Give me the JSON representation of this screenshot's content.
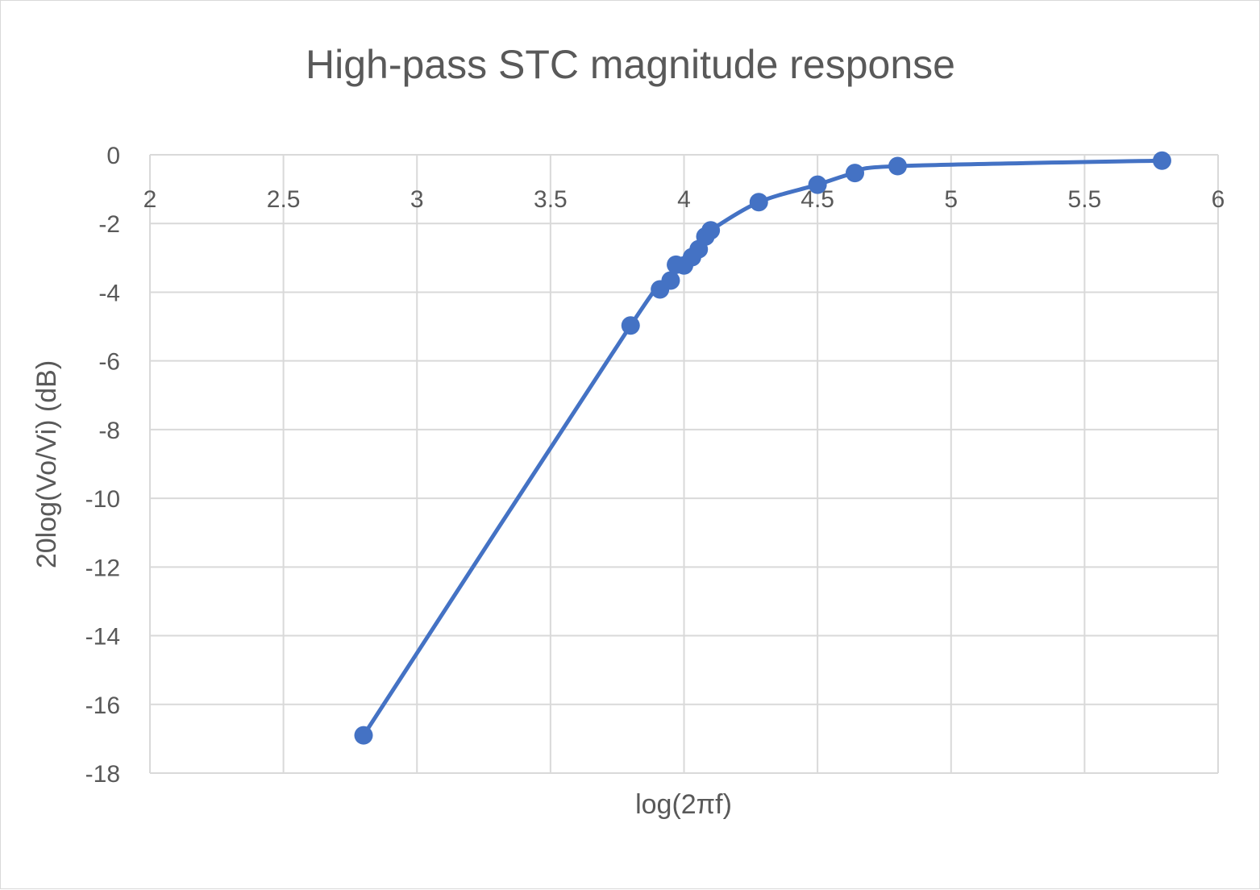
{
  "chart_data": {
    "type": "scatter",
    "title": "High-pass STC magnitude response",
    "xlabel": "log(2πf)",
    "ylabel": "20log(Vo/Vi) (dB)",
    "xlim": [
      2,
      6
    ],
    "ylim": [
      -18,
      0
    ],
    "x_ticks": [
      "2",
      "2.5",
      "3",
      "3.5",
      "4",
      "4.5",
      "5",
      "5.5",
      "6"
    ],
    "y_ticks": [
      "0",
      "-2",
      "-4",
      "-6",
      "-8",
      "-10",
      "-12",
      "-14",
      "-16",
      "-18"
    ],
    "grid": true,
    "line_style": "smooth",
    "series": [
      {
        "color": "#4472c4",
        "x": [
          2.8,
          3.8,
          3.91,
          3.95,
          3.97,
          4.0,
          4.03,
          4.055,
          4.08,
          4.1,
          4.28,
          4.5,
          4.64,
          4.8,
          5.79
        ],
        "y": [
          -16.9,
          -4.97,
          -3.92,
          -3.66,
          -3.2,
          -3.22,
          -2.98,
          -2.75,
          -2.38,
          -2.2,
          -1.38,
          -0.87,
          -0.53,
          -0.33,
          -0.17
        ]
      }
    ]
  }
}
